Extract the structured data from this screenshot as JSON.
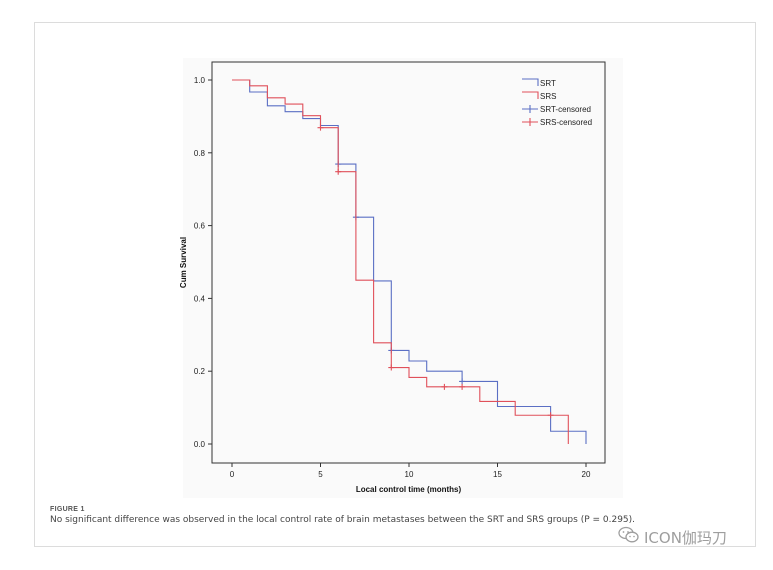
{
  "chart_data": {
    "type": "line",
    "step": true,
    "title": "",
    "xlabel": "Local control time (months)",
    "ylabel": "Cum Survival",
    "xlim": [
      0,
      20
    ],
    "ylim": [
      0,
      1.0
    ],
    "xticks": [
      0,
      5,
      10,
      15,
      20
    ],
    "yticks": [
      0.0,
      0.2,
      0.4,
      0.6,
      0.8,
      1.0
    ],
    "xtick_labels": [
      "0",
      "5",
      "10",
      "15",
      "20"
    ],
    "ytick_labels": [
      "0.0",
      "0.2",
      "0.4",
      "0.6",
      "0.8",
      "1.0"
    ],
    "grid": false,
    "legend_position": "top-right",
    "legend": [
      "SRT",
      "SRS",
      "SRT-censored",
      "SRS-censored"
    ],
    "series": [
      {
        "name": "SRT",
        "color": "#5b6fc4",
        "x": [
          0,
          1,
          2,
          3,
          4,
          5,
          6,
          7,
          8,
          9,
          10,
          11,
          12,
          13,
          14,
          15,
          16,
          17,
          18,
          19,
          20
        ],
        "y": [
          1.0,
          0.967,
          0.929,
          0.913,
          0.894,
          0.875,
          0.769,
          0.623,
          0.448,
          0.257,
          0.228,
          0.2,
          0.2,
          0.172,
          0.172,
          0.103,
          0.103,
          0.103,
          0.035,
          0.035,
          0.0
        ],
        "censored_x": [
          6,
          7,
          9,
          13
        ],
        "censored_y": [
          0.769,
          0.623,
          0.257,
          0.172
        ]
      },
      {
        "name": "SRS",
        "color": "#e0505a",
        "x": [
          0,
          1,
          2,
          3,
          4,
          5,
          6,
          7,
          8,
          9,
          10,
          11,
          12,
          13,
          14,
          15,
          16,
          17,
          18,
          19
        ],
        "y": [
          1.0,
          0.984,
          0.951,
          0.934,
          0.902,
          0.869,
          0.748,
          0.45,
          0.278,
          0.21,
          0.183,
          0.157,
          0.157,
          0.157,
          0.117,
          0.117,
          0.079,
          0.079,
          0.079,
          0.0
        ],
        "censored_x": [
          5,
          6,
          9,
          12,
          13,
          18
        ],
        "censored_y": [
          0.869,
          0.748,
          0.21,
          0.157,
          0.157,
          0.079
        ]
      }
    ]
  },
  "figure": {
    "label": "FIGURE 1",
    "caption": "No significant difference was observed in the local control rate of brain metastases between the SRT and SRS groups (P = 0.295)."
  },
  "watermark": {
    "text": "ICON伽玛刀",
    "icon": "wechat-icon"
  }
}
